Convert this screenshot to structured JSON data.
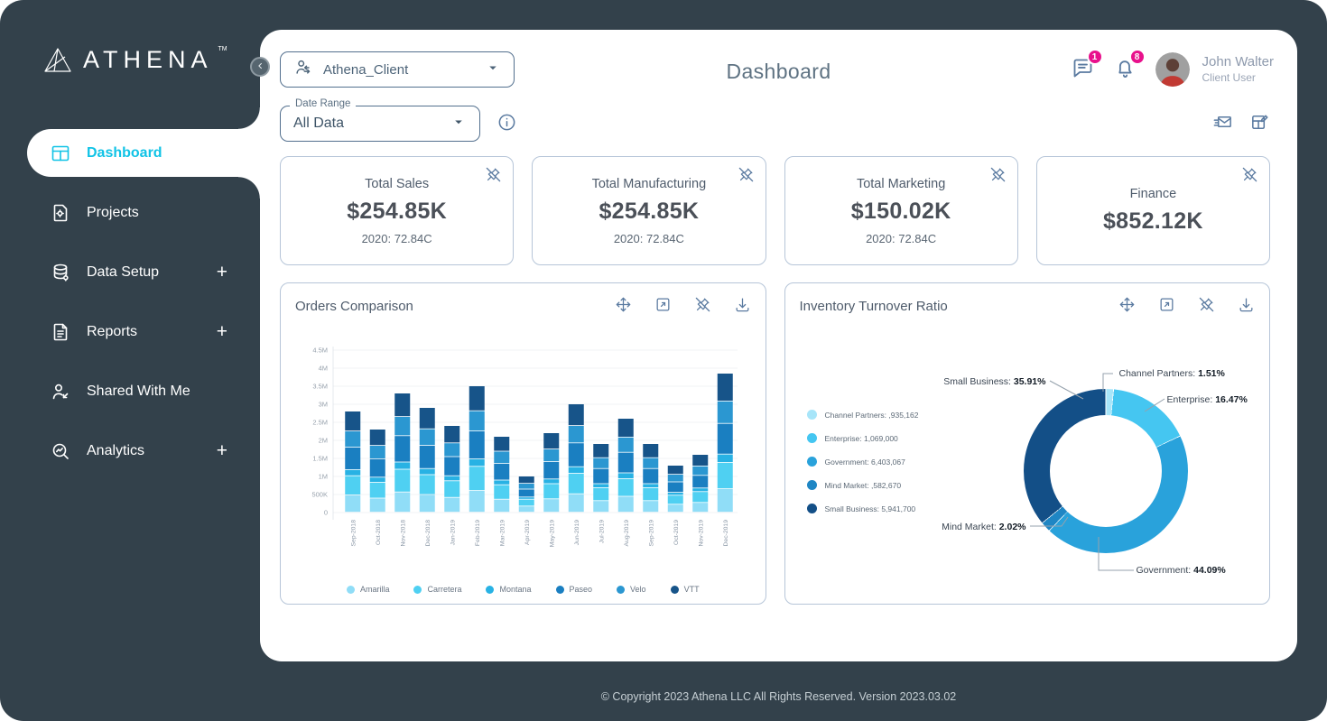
{
  "brand": {
    "logo_text": "ATHENA",
    "tm": "TM"
  },
  "header": {
    "client_selector": "Athena_Client",
    "title": "Dashboard",
    "messages_badge": "1",
    "notifications_badge": "8",
    "user_name": "John Walter",
    "user_role": "Client User"
  },
  "sidebar": {
    "items": [
      {
        "label": "Dashboard",
        "icon": "dashboard",
        "active": true,
        "expandable": false
      },
      {
        "label": "Projects",
        "icon": "projects",
        "active": false,
        "expandable": false
      },
      {
        "label": "Data Setup",
        "icon": "data-setup",
        "active": false,
        "expandable": true
      },
      {
        "label": "Reports",
        "icon": "reports",
        "active": false,
        "expandable": true
      },
      {
        "label": "Shared With Me",
        "icon": "shared",
        "active": false,
        "expandable": false
      },
      {
        "label": "Analytics",
        "icon": "analytics",
        "active": false,
        "expandable": true
      }
    ]
  },
  "filters": {
    "date_range_label": "Date Range",
    "date_range_value": "All Data"
  },
  "kpi_cards": [
    {
      "title": "Total Sales",
      "value": "$254.85K",
      "subtext": "2020: 72.84C"
    },
    {
      "title": "Total Manufacturing",
      "value": "$254.85K",
      "subtext": "2020: 72.84C"
    },
    {
      "title": "Total Marketing",
      "value": "$150.02K",
      "subtext": "2020: 72.84C"
    },
    {
      "title": "Finance",
      "value": "$852.12K",
      "subtext": ""
    }
  ],
  "chart_tools": [
    "move",
    "expand",
    "unpin",
    "download"
  ],
  "chart_data": [
    {
      "type": "bar",
      "stacked": true,
      "title": "Orders Comparison",
      "unit": "millions",
      "ylim": [
        0,
        4.5
      ],
      "yticks": [
        "4.5M",
        "4M",
        "3.5M",
        "3M",
        "2.5M",
        "2M",
        "1.5M",
        "1M",
        "500K",
        "0"
      ],
      "categories": [
        "Sep-2018",
        "Oct-2018",
        "Nov-2018",
        "Dec-2018",
        "Jan-2019",
        "Feb-2019",
        "Mar-2019",
        "Apr-2019",
        "May-2019",
        "Jun-2019",
        "Jul-2019",
        "Aug-2019",
        "Sep-2019",
        "Oct-2019",
        "Nov-2019",
        "Dec-2019"
      ],
      "series": [
        {
          "name": "Amarilla",
          "color": "#90ddf7",
          "values": [
            0.48,
            0.39,
            0.56,
            0.49,
            0.41,
            0.6,
            0.36,
            0.17,
            0.37,
            0.51,
            0.32,
            0.44,
            0.32,
            0.22,
            0.27,
            0.65
          ]
        },
        {
          "name": "Carretera",
          "color": "#4fd0f2",
          "values": [
            0.53,
            0.44,
            0.63,
            0.55,
            0.46,
            0.67,
            0.4,
            0.19,
            0.42,
            0.57,
            0.36,
            0.49,
            0.36,
            0.25,
            0.3,
            0.73
          ]
        },
        {
          "name": "Montana",
          "color": "#28b2e4",
          "values": [
            0.17,
            0.14,
            0.2,
            0.17,
            0.14,
            0.21,
            0.13,
            0.06,
            0.13,
            0.18,
            0.11,
            0.16,
            0.11,
            0.08,
            0.1,
            0.23
          ]
        },
        {
          "name": "Paseo",
          "color": "#1a7fc1",
          "values": [
            0.62,
            0.51,
            0.73,
            0.64,
            0.53,
            0.77,
            0.46,
            0.22,
            0.48,
            0.66,
            0.42,
            0.57,
            0.42,
            0.29,
            0.35,
            0.85
          ]
        },
        {
          "name": "Velo",
          "color": "#2b97d1",
          "values": [
            0.45,
            0.37,
            0.53,
            0.46,
            0.38,
            0.56,
            0.34,
            0.16,
            0.35,
            0.48,
            0.3,
            0.42,
            0.3,
            0.21,
            0.26,
            0.62
          ]
        },
        {
          "name": "VTT",
          "color": "#175489",
          "values": [
            0.55,
            0.45,
            0.65,
            0.59,
            0.48,
            0.69,
            0.41,
            0.2,
            0.45,
            0.6,
            0.39,
            0.52,
            0.39,
            0.25,
            0.32,
            0.77
          ]
        }
      ],
      "legend_position": "bottom",
      "grid": true
    },
    {
      "type": "donut",
      "title": "Inventory Turnover Ratio",
      "legend_position": "left",
      "slices": [
        {
          "name": "Channel Partners",
          "pct": 1.51,
          "legend_value": ",935,162",
          "color": "#a7e5f9"
        },
        {
          "name": "Enterprise",
          "pct": 16.47,
          "legend_value": "1,069,000",
          "color": "#45c6f1"
        },
        {
          "name": "Government",
          "pct": 44.09,
          "legend_value": "6,403,067",
          "color": "#29a2db"
        },
        {
          "name": "Mind Market",
          "pct": 2.02,
          "legend_value": ",582,670",
          "color": "#1f86c4"
        },
        {
          "name": "Small Business",
          "pct": 35.91,
          "legend_value": "5,941,700",
          "color": "#134f87"
        }
      ]
    }
  ],
  "colors": {
    "accent": "#10c3e6",
    "badge": "#e8118c",
    "sidebar": "#33414b"
  },
  "footer": {
    "copyright": "© Copyright 2023 Athena LLC All Rights Reserved. Version 2023.03.02"
  }
}
